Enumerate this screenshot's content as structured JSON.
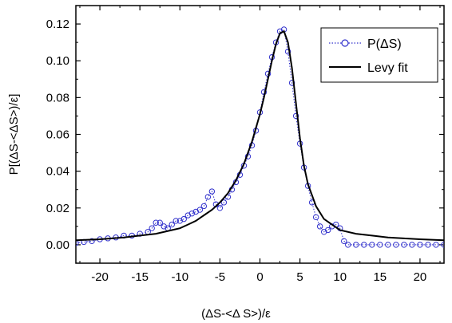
{
  "chart_data": {
    "type": "line",
    "title": "",
    "xlabel": "(ΔS-<Δ S>)/ε",
    "ylabel": "P[(ΔS-<ΔS>)/ε]",
    "xlim": [
      -23,
      23
    ],
    "ylim": [
      -0.01,
      0.13
    ],
    "xticks": [
      -20,
      -15,
      -10,
      -5,
      0,
      5,
      10,
      15,
      20
    ],
    "xtick_labels": [
      "-20",
      "-15",
      "-10",
      "-5",
      "0",
      "5",
      "10",
      "15",
      "20"
    ],
    "yticks": [
      0.0,
      0.02,
      0.04,
      0.06,
      0.08,
      0.1,
      0.12
    ],
    "ytick_labels": [
      "0.00",
      "0.02",
      "0.04",
      "0.06",
      "0.08",
      "0.10",
      "0.12"
    ],
    "grid": false,
    "legend": {
      "position": "top-right",
      "entries": [
        {
          "label": "P(ΔS)",
          "style": "dotted-circles"
        },
        {
          "label": "Levy fit",
          "style": "solid"
        }
      ]
    },
    "series": [
      {
        "name": "P(ΔS)",
        "color": "#3333cc",
        "marker": "circle",
        "x": [
          -23,
          -22,
          -21,
          -20,
          -19,
          -18,
          -17,
          -16,
          -15,
          -14,
          -13.5,
          -13,
          -12.5,
          -12,
          -11.5,
          -11,
          -10.5,
          -10,
          -9.5,
          -9,
          -8.5,
          -8,
          -7.5,
          -7,
          -6.5,
          -6,
          -5.5,
          -5,
          -4.5,
          -4,
          -3.5,
          -3,
          -2.5,
          -2,
          -1.5,
          -1,
          -0.5,
          0,
          0.5,
          1,
          1.5,
          2,
          2.5,
          3,
          3.5,
          4,
          4.5,
          5,
          5.5,
          6,
          6.5,
          7,
          7.5,
          8,
          8.5,
          9,
          9.5,
          10,
          10.5,
          11,
          12,
          13,
          14,
          15,
          16,
          17,
          18,
          19,
          20,
          21,
          22,
          23
        ],
        "y": [
          0.001,
          0.0015,
          0.002,
          0.003,
          0.0035,
          0.004,
          0.005,
          0.005,
          0.006,
          0.007,
          0.009,
          0.012,
          0.012,
          0.01,
          0.009,
          0.011,
          0.013,
          0.013,
          0.014,
          0.016,
          0.017,
          0.018,
          0.019,
          0.021,
          0.026,
          0.029,
          0.022,
          0.02,
          0.023,
          0.026,
          0.03,
          0.034,
          0.038,
          0.043,
          0.048,
          0.054,
          0.062,
          0.072,
          0.083,
          0.093,
          0.102,
          0.11,
          0.116,
          0.117,
          0.105,
          0.088,
          0.07,
          0.055,
          0.042,
          0.032,
          0.023,
          0.015,
          0.01,
          0.007,
          0.008,
          0.01,
          0.011,
          0.009,
          0.002,
          0.0,
          0.0,
          0.0,
          0.0,
          0.0,
          0.0,
          0.0,
          0.0,
          0.0,
          0.0,
          0.0,
          0.0,
          0.0
        ]
      },
      {
        "name": "Levy fit",
        "color": "#000000",
        "marker": "none",
        "x": [
          -23,
          -20,
          -17,
          -15,
          -13,
          -11,
          -10,
          -9,
          -8,
          -7,
          -6,
          -5,
          -4,
          -3,
          -2,
          -1,
          0,
          0.5,
          1,
          1.5,
          2,
          2.5,
          3,
          3.5,
          4,
          4.5,
          5,
          5.5,
          6,
          7,
          8,
          9,
          10,
          12,
          14,
          16,
          18,
          20,
          23
        ],
        "y": [
          0.0025,
          0.003,
          0.004,
          0.005,
          0.006,
          0.008,
          0.009,
          0.011,
          0.013,
          0.016,
          0.019,
          0.023,
          0.028,
          0.035,
          0.044,
          0.056,
          0.071,
          0.08,
          0.09,
          0.1,
          0.109,
          0.115,
          0.116,
          0.11,
          0.096,
          0.077,
          0.058,
          0.043,
          0.033,
          0.021,
          0.014,
          0.011,
          0.008,
          0.006,
          0.005,
          0.004,
          0.0035,
          0.003,
          0.0025
        ]
      }
    ]
  }
}
